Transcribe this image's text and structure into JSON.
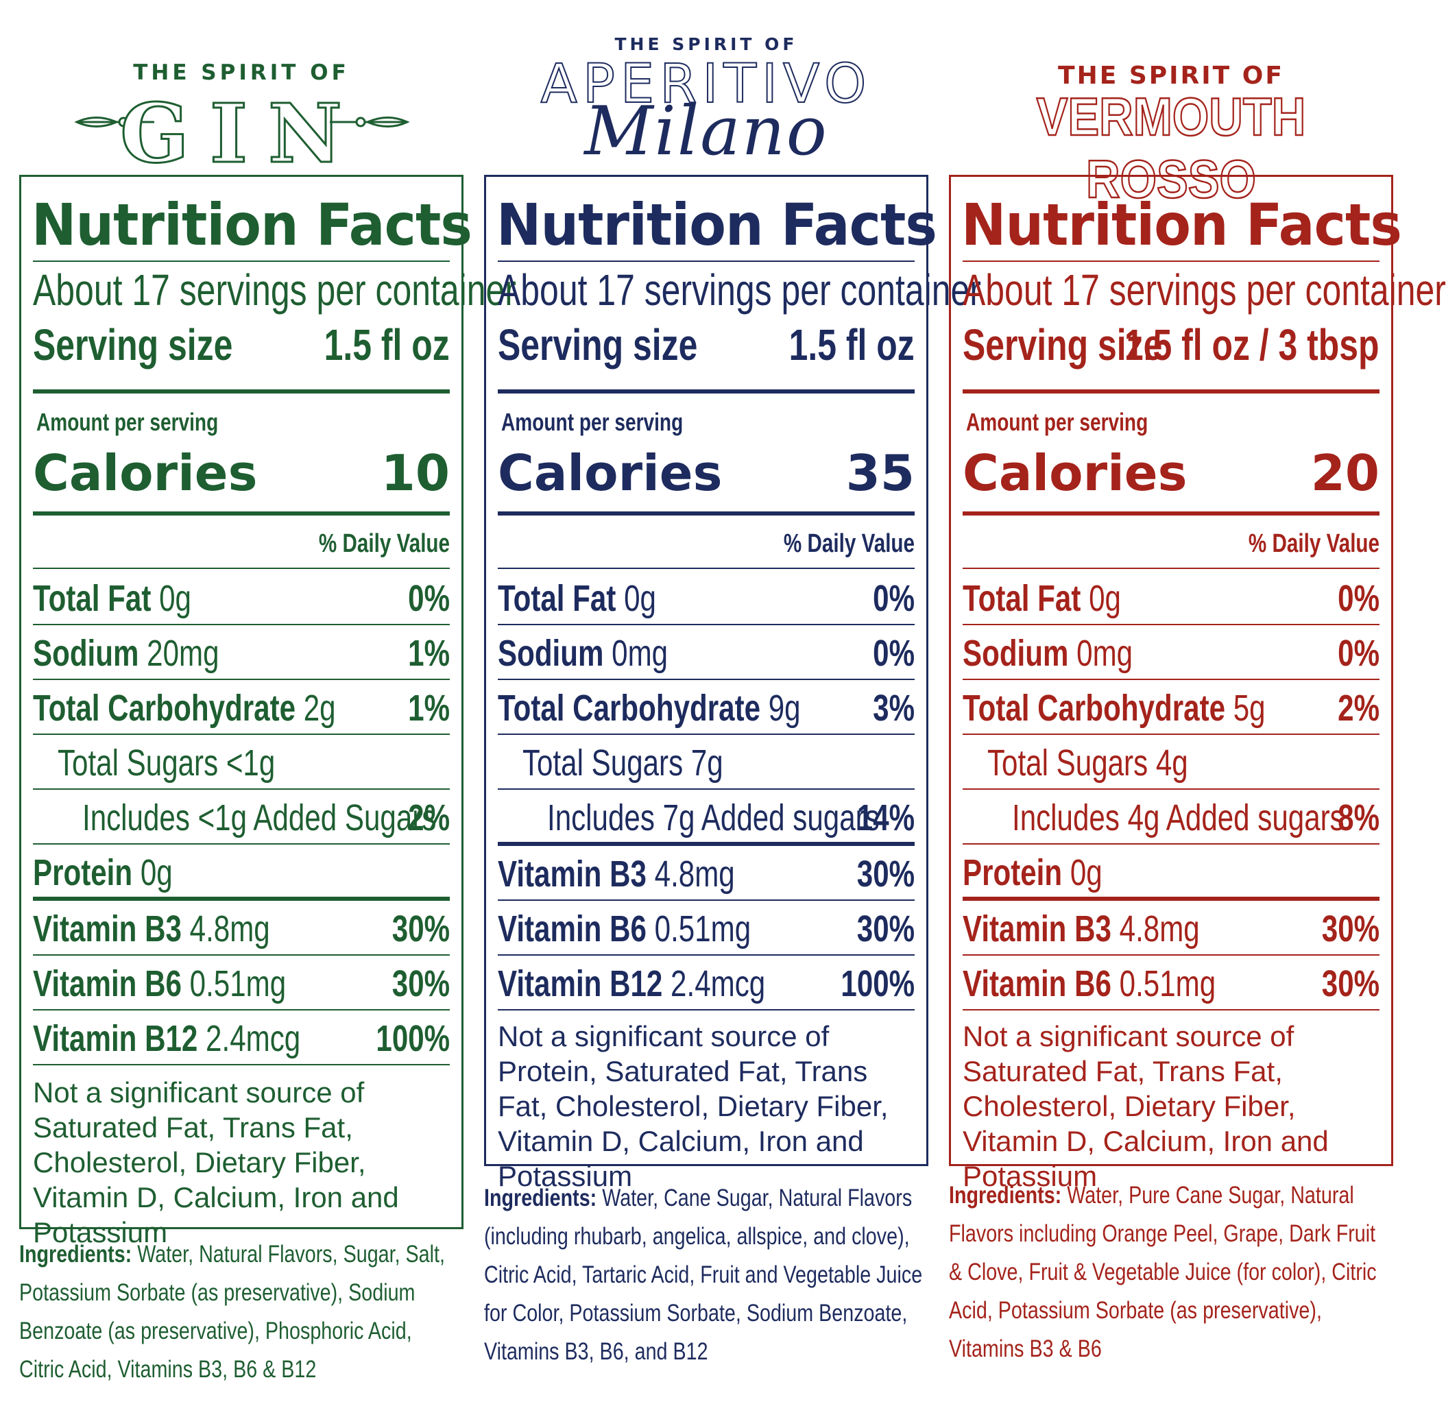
{
  "colors": {
    "gin": "#1e5e31",
    "aperitivo": "#1d2b5e",
    "vermouth": "#a4231b"
  },
  "gin": {
    "brand_top": "THE SPIRIT OF",
    "brand_name": "GIN",
    "title": "Nutrition Facts",
    "servings": "About 17 servings per container",
    "serving_size_label": "Serving size",
    "serving_size_value": "1.5 fl oz",
    "amount_per_serving": "Amount per serving",
    "calories_label": "Calories",
    "calories_value": "10",
    "daily_value_header": "% Daily Value",
    "rows": [
      {
        "label": "Total Fat",
        "amount": "0g",
        "pct": "0%"
      },
      {
        "label": "Sodium",
        "amount": "20mg",
        "pct": "1%"
      },
      {
        "label": "Total Carbohydrate",
        "amount": "2g",
        "pct": "1%"
      },
      {
        "label": "",
        "amount": "Total Sugars <1g",
        "pct": ""
      },
      {
        "label": "",
        "amount": "Includes <1g Added Sugars",
        "pct": "2%"
      },
      {
        "label": "Protein",
        "amount": "0g",
        "pct": ""
      },
      {
        "label": "Vitamin B3",
        "amount": "4.8mg",
        "pct": "30%"
      },
      {
        "label": "Vitamin B6",
        "amount": "0.51mg",
        "pct": "30%"
      },
      {
        "label": "Vitamin B12",
        "amount": "2.4mcg",
        "pct": "100%"
      }
    ],
    "note": "Not a significant source of Saturated Fat, Trans Fat, Cholesterol, Dietary Fiber, Vitamin D, Calcium, Iron and Potassium",
    "ingredients_label": "Ingredients:",
    "ingredients": "Water, Natural Flavors, Sugar, Salt, Potassium Sorbate (as preservative), Sodium Benzoate (as preservative), Phosphoric Acid, Citric Acid, Vitamins B3, B6 & B12"
  },
  "aperitivo": {
    "brand_top": "THE SPIRIT OF",
    "brand_name": "APERITIVO",
    "brand_script": "Milano",
    "title": "Nutrition Facts",
    "servings": "About 17 servings per container",
    "serving_size_label": "Serving size",
    "serving_size_value": "1.5 fl oz",
    "amount_per_serving": "Amount per serving",
    "calories_label": "Calories",
    "calories_value": "35",
    "daily_value_header": "% Daily Value",
    "rows": [
      {
        "label": "Total Fat",
        "amount": "0g",
        "pct": "0%"
      },
      {
        "label": "Sodium",
        "amount": "0mg",
        "pct": "0%"
      },
      {
        "label": "Total Carbohydrate",
        "amount": "9g",
        "pct": "3%"
      },
      {
        "label": "",
        "amount": "Total Sugars 7g",
        "pct": ""
      },
      {
        "label": "",
        "amount": "Includes 7g Added sugars",
        "pct": "14%"
      },
      {
        "label": "Vitamin B3",
        "amount": "4.8mg",
        "pct": "30%"
      },
      {
        "label": "Vitamin B6",
        "amount": "0.51mg",
        "pct": "30%"
      },
      {
        "label": "Vitamin B12",
        "amount": "2.4mcg",
        "pct": "100%"
      }
    ],
    "note": "Not a significant source of Protein, Saturated Fat, Trans Fat, Cholesterol, Dietary Fiber, Vitamin D, Calcium, Iron and Potassium",
    "ingredients_label": "Ingredients:",
    "ingredients": "Water, Cane Sugar, Natural Flavors (including rhubarb, angelica, allspice, and clove), Citric Acid, Tartaric Acid, Fruit and Vegetable Juice for Color,  Potassium Sorbate, Sodium Benzoate, Vitamins B3, B6, and B12"
  },
  "vermouth": {
    "brand_top": "THE SPIRIT OF",
    "brand_name": "VERMOUTH ROSSO",
    "title": "Nutrition Facts",
    "servings": "About 17 servings per container",
    "serving_size_label": "Serving size",
    "serving_size_value": "1.5 fl oz / 3 tbsp",
    "amount_per_serving": "Amount per serving",
    "calories_label": "Calories",
    "calories_value": "20",
    "daily_value_header": "% Daily Value",
    "rows": [
      {
        "label": "Total Fat",
        "amount": "0g",
        "pct": "0%"
      },
      {
        "label": "Sodium",
        "amount": "0mg",
        "pct": "0%"
      },
      {
        "label": "Total Carbohydrate",
        "amount": "5g",
        "pct": "2%"
      },
      {
        "label": "",
        "amount": "Total Sugars 4g",
        "pct": ""
      },
      {
        "label": "",
        "amount": "Includes 4g Added sugars",
        "pct": "8%"
      },
      {
        "label": "Protein",
        "amount": "0g",
        "pct": ""
      },
      {
        "label": "Vitamin B3",
        "amount": "4.8mg",
        "pct": "30%"
      },
      {
        "label": "Vitamin B6",
        "amount": "0.51mg",
        "pct": "30%"
      }
    ],
    "note": "Not a significant source of Saturated Fat, Trans Fat, Cholesterol, Dietary Fiber, Vitamin D, Calcium, Iron and Potassium",
    "ingredients_label": "Ingredients:",
    "ingredients": "Water, Pure Cane Sugar, Natural Flavors including Orange Peel, Grape, Dark Fruit & Clove, Fruit & Vegetable Juice (for color), Citric Acid, Potassium Sorbate (as preservative), Vitamins B3 & B6"
  }
}
